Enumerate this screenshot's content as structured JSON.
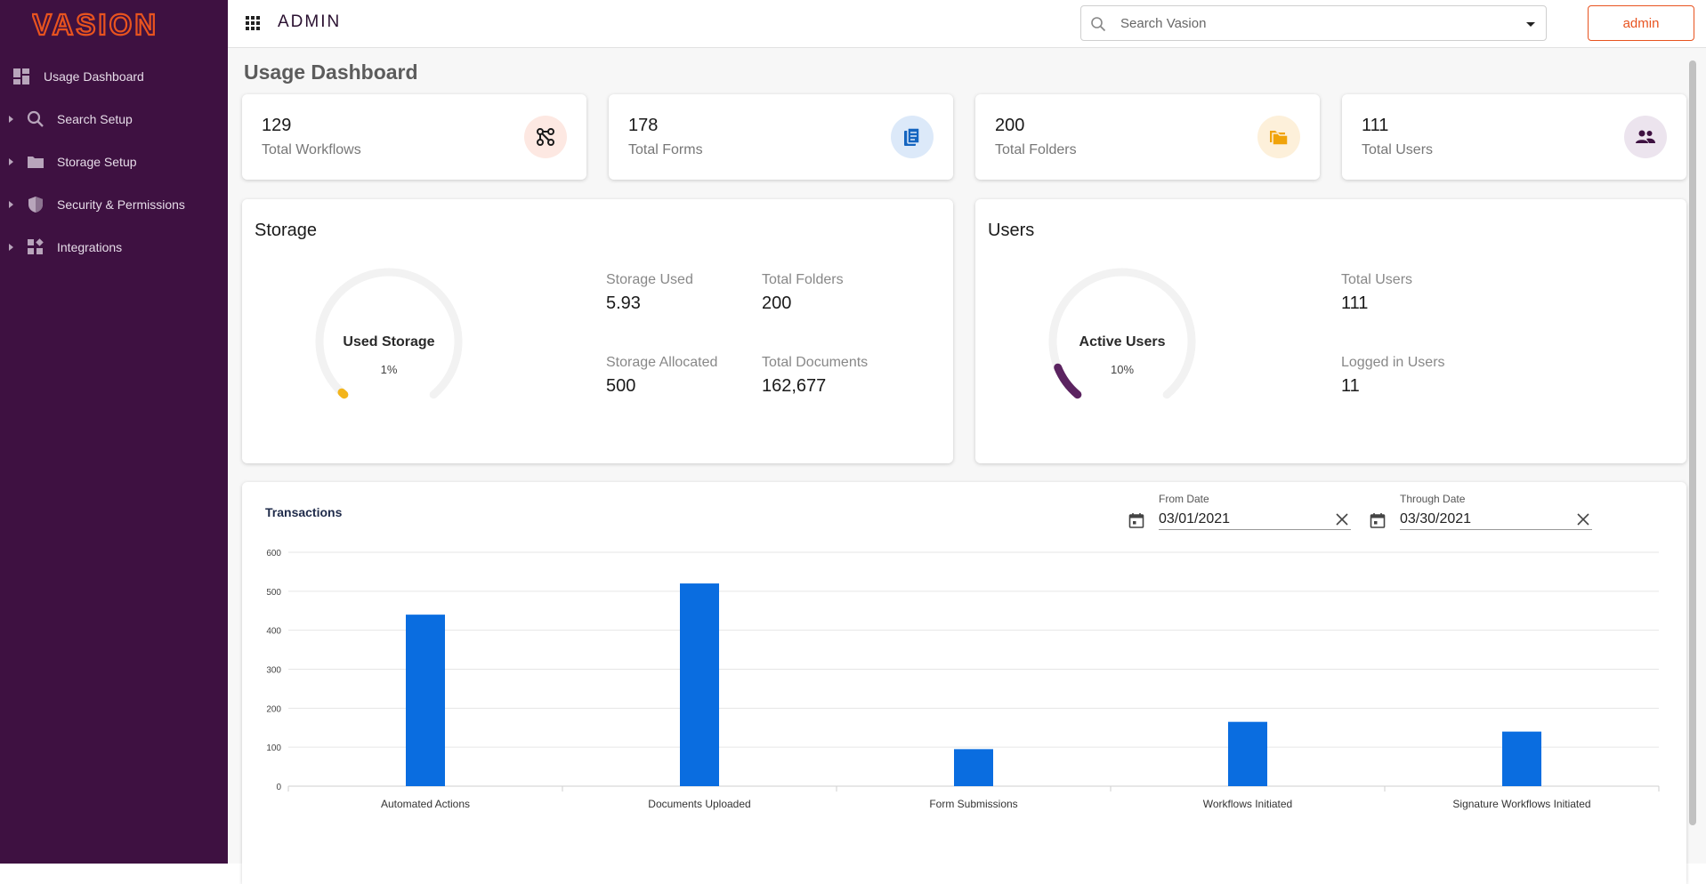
{
  "brand": {
    "logo_text": "VASION",
    "accent": "#e8531f",
    "sidebar_bg": "#3e1141"
  },
  "sidebar": {
    "items": [
      {
        "label": "Usage Dashboard",
        "icon": "dashboard-icon"
      },
      {
        "label": "Search Setup",
        "icon": "search-icon"
      },
      {
        "label": "Storage Setup",
        "icon": "folder-icon"
      },
      {
        "label": "Security & Permissions",
        "icon": "shield-icon"
      },
      {
        "label": "Integrations",
        "icon": "integrations-icon"
      }
    ]
  },
  "topbar": {
    "title": "ADMIN",
    "search_placeholder": "Search Vasion",
    "user_button": "admin"
  },
  "page": {
    "title": "Usage Dashboard"
  },
  "stats": [
    {
      "value": "129",
      "label": "Total Workflows",
      "icon": "workflow-icon",
      "bg": "#fde8e2",
      "fg": "#1a1a1a"
    },
    {
      "value": "178",
      "label": "Total Forms",
      "icon": "forms-icon",
      "bg": "#dce9f9",
      "fg": "#1565c0"
    },
    {
      "value": "200",
      "label": "Total Folders",
      "icon": "folders-icon",
      "bg": "#fdf0da",
      "fg": "#f0a30a"
    },
    {
      "value": "111",
      "label": "Total Users",
      "icon": "users-icon",
      "bg": "#ece4ee",
      "fg": "#3e1141"
    }
  ],
  "storage": {
    "title": "Storage",
    "gauge_label": "Used Storage",
    "gauge_pct": "1%",
    "gauge_fraction": 0.01,
    "gauge_color": "#f3b51c",
    "used_label": "Storage Used",
    "used_value": "5.93",
    "folders_label": "Total Folders",
    "folders_value": "200",
    "allocated_label": "Storage Allocated",
    "allocated_value": "500",
    "docs_label": "Total Documents",
    "docs_value": "162,677"
  },
  "users": {
    "title": "Users",
    "gauge_label": "Active Users",
    "gauge_pct": "10%",
    "gauge_fraction": 0.1,
    "gauge_color": "#5b2360",
    "total_label": "Total Users",
    "total_value": "111",
    "logged_label": "Logged in Users",
    "logged_value": "11"
  },
  "transactions": {
    "title": "Transactions",
    "from_label": "From Date",
    "from_value": "03/01/2021",
    "through_label": "Through Date",
    "through_value": "03/30/2021"
  },
  "chart_data": {
    "type": "bar",
    "title": "Transactions",
    "categories": [
      "Automated Actions",
      "Documents Uploaded",
      "Form Submissions",
      "Workflows Initiated",
      "Signature Workflows Initiated"
    ],
    "values": [
      440,
      520,
      95,
      165,
      140
    ],
    "ylim": [
      0,
      600
    ],
    "yticks": [
      0,
      100,
      200,
      300,
      400,
      500,
      600
    ],
    "color": "#0a6de0",
    "grid": true
  }
}
